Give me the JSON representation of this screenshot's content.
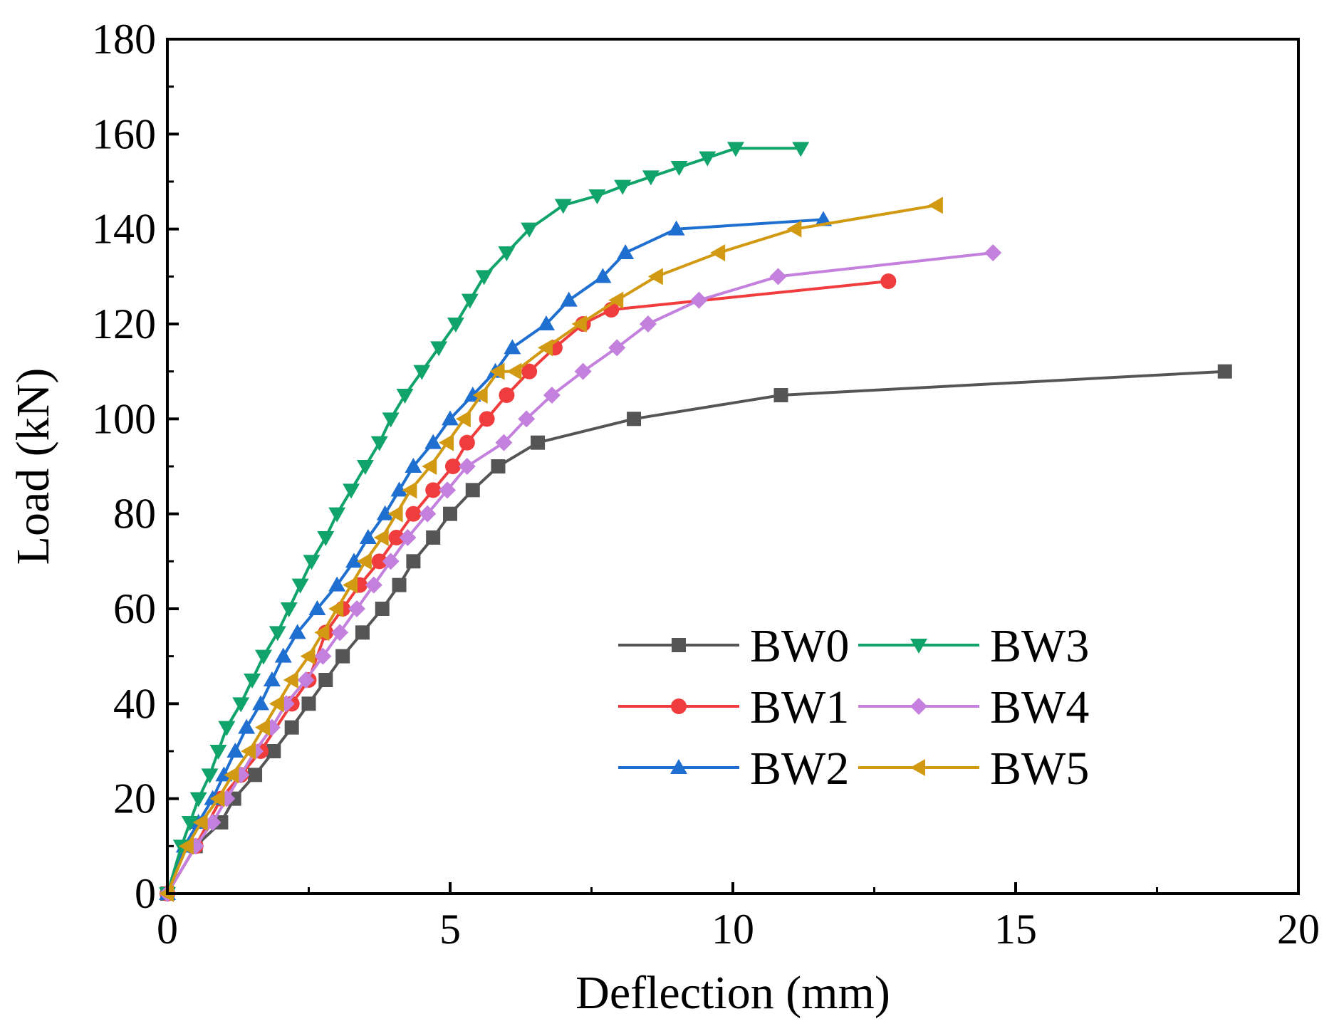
{
  "chart_data": {
    "type": "line",
    "title": "",
    "xlabel": "Deflection (mm)",
    "ylabel": "Load (kN)",
    "xlim": [
      0,
      20
    ],
    "ylim": [
      0,
      180
    ],
    "xticks": [
      0,
      5,
      10,
      15,
      20
    ],
    "yticks": [
      0,
      20,
      40,
      60,
      80,
      100,
      120,
      140,
      160,
      180
    ],
    "grid": false,
    "legend_position": "bottom-right",
    "series": [
      {
        "name": "BW0",
        "color": "#555555",
        "marker": "square",
        "x": [
          0,
          0.5,
          0.95,
          1.18,
          1.55,
          1.88,
          2.2,
          2.5,
          2.8,
          3.1,
          3.45,
          3.8,
          4.1,
          4.35,
          4.7,
          5.0,
          5.4,
          5.85,
          6.55,
          8.25,
          10.85,
          18.7
        ],
        "y": [
          0,
          10,
          15,
          20,
          25,
          30,
          35,
          40,
          45,
          50,
          55,
          60,
          65,
          70,
          75,
          80,
          85,
          90,
          95,
          100,
          105,
          110
        ]
      },
      {
        "name": "BW1",
        "color": "#f03c3c",
        "marker": "circle",
        "x": [
          0,
          0.5,
          0.95,
          1.3,
          1.65,
          2.2,
          2.5,
          2.8,
          3.1,
          3.4,
          3.75,
          4.05,
          4.35,
          4.7,
          5.05,
          5.3,
          5.65,
          6.0,
          6.4,
          6.85,
          7.35,
          7.85,
          12.75
        ],
        "y": [
          0,
          10,
          20,
          25,
          30,
          40,
          45,
          55,
          60,
          65,
          70,
          75,
          80,
          85,
          90,
          95,
          100,
          105,
          110,
          115,
          120,
          123,
          129
        ]
      },
      {
        "name": "BW2",
        "color": "#1f6fd0",
        "marker": "triangle-up",
        "x": [
          0,
          0.3,
          0.55,
          0.8,
          1.0,
          1.2,
          1.4,
          1.65,
          1.85,
          2.05,
          2.3,
          2.65,
          3.0,
          3.3,
          3.55,
          3.85,
          4.1,
          4.35,
          4.7,
          5.0,
          5.4,
          5.8,
          6.1,
          6.7,
          7.1,
          7.7,
          8.1,
          9.0,
          11.6
        ],
        "y": [
          0,
          10,
          15,
          20,
          25,
          30,
          35,
          40,
          45,
          50,
          55,
          60,
          65,
          70,
          75,
          80,
          85,
          90,
          95,
          100,
          105,
          110,
          115,
          120,
          125,
          130,
          135,
          140,
          142
        ]
      },
      {
        "name": "BW3",
        "color": "#10a36a",
        "marker": "triangle-down",
        "x": [
          0,
          0.25,
          0.4,
          0.55,
          0.75,
          0.9,
          1.05,
          1.3,
          1.5,
          1.7,
          1.95,
          2.15,
          2.35,
          2.55,
          2.8,
          3.0,
          3.25,
          3.5,
          3.75,
          3.95,
          4.2,
          4.5,
          4.8,
          5.1,
          5.35,
          5.6,
          6.0,
          6.4,
          7.0,
          7.6,
          8.05,
          8.55,
          9.05,
          9.55,
          10.05,
          11.2
        ],
        "y": [
          0,
          10,
          15,
          20,
          25,
          30,
          35,
          40,
          45,
          50,
          55,
          60,
          65,
          70,
          75,
          80,
          85,
          90,
          95,
          100,
          105,
          110,
          115,
          120,
          125,
          130,
          135,
          140,
          145,
          147,
          149,
          151,
          153,
          155,
          157,
          157
        ]
      },
      {
        "name": "BW4",
        "color": "#c380dd",
        "marker": "diamond",
        "x": [
          0,
          0.5,
          0.8,
          1.05,
          1.3,
          1.55,
          1.85,
          2.1,
          2.45,
          2.75,
          3.05,
          3.35,
          3.65,
          3.95,
          4.25,
          4.6,
          4.95,
          5.3,
          5.95,
          6.35,
          6.8,
          7.35,
          7.95,
          8.5,
          9.4,
          10.8,
          14.6
        ],
        "y": [
          0,
          10,
          15,
          20,
          25,
          30,
          35,
          40,
          45,
          50,
          55,
          60,
          65,
          70,
          75,
          80,
          85,
          90,
          95,
          100,
          105,
          110,
          115,
          120,
          125,
          130,
          135
        ]
      },
      {
        "name": "BW5",
        "color": "#d29a12",
        "marker": "triangle-left",
        "x": [
          0,
          0.35,
          0.6,
          0.9,
          1.15,
          1.45,
          1.7,
          1.95,
          2.2,
          2.5,
          2.75,
          3.0,
          3.25,
          3.5,
          3.8,
          4.05,
          4.3,
          4.65,
          4.95,
          5.25,
          5.55,
          5.85,
          6.15,
          6.7,
          7.3,
          7.95,
          8.65,
          9.75,
          11.1,
          13.6
        ],
        "y": [
          0,
          10,
          15,
          20,
          25,
          30,
          35,
          40,
          45,
          50,
          55,
          60,
          65,
          70,
          75,
          80,
          85,
          90,
          95,
          100,
          105,
          110,
          110,
          115,
          120,
          125,
          130,
          135,
          140,
          145
        ]
      }
    ]
  }
}
